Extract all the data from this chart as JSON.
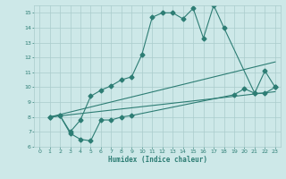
{
  "xlabel": "Humidex (Indice chaleur)",
  "xlim": [
    -0.5,
    23.5
  ],
  "ylim": [
    6,
    15.5
  ],
  "xticks": [
    0,
    1,
    2,
    3,
    4,
    5,
    6,
    7,
    8,
    9,
    10,
    11,
    12,
    13,
    14,
    15,
    16,
    17,
    18,
    19,
    20,
    21,
    22,
    23
  ],
  "yticks": [
    6,
    7,
    8,
    9,
    10,
    11,
    12,
    13,
    14,
    15
  ],
  "bg_color": "#cde8e8",
  "line_color": "#2d7d74",
  "grid_color": "#aacccc",
  "line1_x": [
    1,
    2,
    3,
    4,
    5,
    6,
    7,
    8,
    9,
    10,
    11,
    12,
    13,
    14,
    15,
    16,
    17,
    18,
    21,
    22,
    23
  ],
  "line1_y": [
    8.0,
    8.1,
    7.0,
    7.8,
    9.4,
    9.8,
    10.1,
    10.5,
    10.7,
    12.2,
    14.7,
    15.0,
    15.0,
    14.6,
    15.3,
    13.3,
    15.5,
    14.0,
    9.6,
    11.1,
    10.0
  ],
  "line2_x": [
    1,
    2,
    3,
    4,
    5,
    6,
    7,
    8,
    9,
    19,
    20,
    21,
    22,
    23
  ],
  "line2_y": [
    8.0,
    8.1,
    6.9,
    6.5,
    6.4,
    7.8,
    7.8,
    8.0,
    8.1,
    9.5,
    9.9,
    9.6,
    9.6,
    10.0
  ],
  "line3_x": [
    1,
    23
  ],
  "line3_y": [
    8.0,
    11.7
  ],
  "line4_x": [
    1,
    23
  ],
  "line4_y": [
    8.0,
    9.7
  ]
}
